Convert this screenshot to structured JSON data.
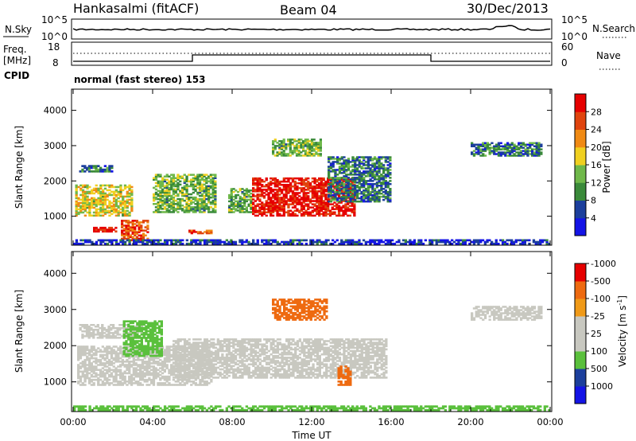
{
  "header": {
    "station": "Hankasalmi (fitACF)",
    "beam": "Beam 04",
    "date": "30/Dec/2013"
  },
  "noise_panel": {
    "left_label": "N.Sky",
    "right_label": "N.Search",
    "left_ticks": [
      "10^5",
      "10^0"
    ],
    "right_ticks": [
      "10^5",
      "10^0"
    ]
  },
  "freq_panel": {
    "left_label_1": "Freq.",
    "left_label_2": "[MHz]",
    "left_ticks": [
      "18",
      "8"
    ],
    "right_label": "Nave",
    "right_ticks": [
      "60",
      "0"
    ],
    "cpid_label": "CPID",
    "program": "normal (fast stereo) 153"
  },
  "colors": {
    "power_scale": [
      "#1414e6",
      "#1c3f9c",
      "#3a8a3a",
      "#6fb84a",
      "#f0d020",
      "#f08a14",
      "#e0440e",
      "#e60000"
    ],
    "velocity_scale": [
      "#e60000",
      "#ee6a10",
      "#f09a18",
      "#c8c8c0",
      "#c8c8c0",
      "#5ac03c",
      "#1c3f9c",
      "#1414e6"
    ]
  },
  "chart_data": [
    {
      "type": "heatmap",
      "title": "Power",
      "ylabel": "Slant Range [km]",
      "xlabel": "Time UT",
      "x_ticks": [
        "00:00",
        "04:00",
        "08:00",
        "12:00",
        "16:00",
        "20:00",
        "00:00"
      ],
      "y_ticks": [
        "1000",
        "2000",
        "3000",
        "4000"
      ],
      "ylim": [
        180,
        4600
      ],
      "colorbar_label": "Power [dB]",
      "colorbar_ticks": [
        "4",
        "8",
        "12",
        "16",
        "20",
        "24",
        "28"
      ],
      "colorbar_range": [
        0,
        30
      ],
      "echo_regions": [
        {
          "t0": 0.1,
          "t1": 3.0,
          "r0": 1000,
          "r1": 1900,
          "level": 16
        },
        {
          "t0": 0.3,
          "t1": 2.0,
          "r0": 2250,
          "r1": 2450,
          "level": 8
        },
        {
          "t0": 1.0,
          "t1": 2.2,
          "r0": 550,
          "r1": 700,
          "level": 28
        },
        {
          "t0": 2.4,
          "t1": 3.8,
          "r0": 300,
          "r1": 900,
          "level": 24
        },
        {
          "t0": 4.0,
          "t1": 7.2,
          "r0": 1100,
          "r1": 2200,
          "level": 12
        },
        {
          "t0": 5.8,
          "t1": 7.0,
          "r0": 500,
          "r1": 620,
          "level": 24
        },
        {
          "t0": 7.8,
          "t1": 9.0,
          "r0": 1100,
          "r1": 1800,
          "level": 12
        },
        {
          "t0": 9.0,
          "t1": 14.2,
          "r0": 1000,
          "r1": 2100,
          "level": 28
        },
        {
          "t0": 10.0,
          "t1": 12.5,
          "r0": 2700,
          "r1": 3200,
          "level": 12
        },
        {
          "t0": 12.8,
          "t1": 16.0,
          "r0": 1400,
          "r1": 2700,
          "level": 8
        },
        {
          "t0": 20.0,
          "t1": 23.6,
          "r0": 2700,
          "r1": 3100,
          "level": 8
        },
        {
          "t0": 0.0,
          "t1": 24.0,
          "r0": 200,
          "r1": 350,
          "level": 4
        }
      ]
    },
    {
      "type": "heatmap",
      "title": "Velocity",
      "ylabel": "Slant Range [km]",
      "xlabel": "Time UT",
      "x_ticks": [
        "00:00",
        "04:00",
        "08:00",
        "12:00",
        "16:00",
        "20:00",
        "00:00"
      ],
      "y_ticks": [
        "1000",
        "2000",
        "3000",
        "4000"
      ],
      "ylim": [
        180,
        4600
      ],
      "colorbar_label": "Velocity [m s^-1]",
      "colorbar_ticks": [
        "1000",
        "500",
        "100",
        "25",
        "-25",
        "-100",
        "-500",
        "-1000"
      ],
      "echo_regions": [
        {
          "t0": 0.2,
          "t1": 7.0,
          "r0": 900,
          "r1": 2000,
          "velocity": 0
        },
        {
          "t0": 0.3,
          "t1": 3.5,
          "r0": 2200,
          "r1": 2600,
          "velocity": 0
        },
        {
          "t0": 2.5,
          "t1": 4.5,
          "r0": 1700,
          "r1": 2700,
          "velocity": 80
        },
        {
          "t0": 5.0,
          "t1": 15.8,
          "r0": 1100,
          "r1": 2200,
          "velocity": 0
        },
        {
          "t0": 13.3,
          "t1": 14.0,
          "r0": 900,
          "r1": 1450,
          "velocity": -150
        },
        {
          "t0": 10.0,
          "t1": 12.8,
          "r0": 2700,
          "r1": 3300,
          "velocity": -150
        },
        {
          "t0": 20.0,
          "t1": 23.6,
          "r0": 2700,
          "r1": 3100,
          "velocity": 0
        },
        {
          "t0": 0.0,
          "t1": 24.0,
          "r0": 200,
          "r1": 350,
          "velocity": 60
        }
      ]
    }
  ]
}
